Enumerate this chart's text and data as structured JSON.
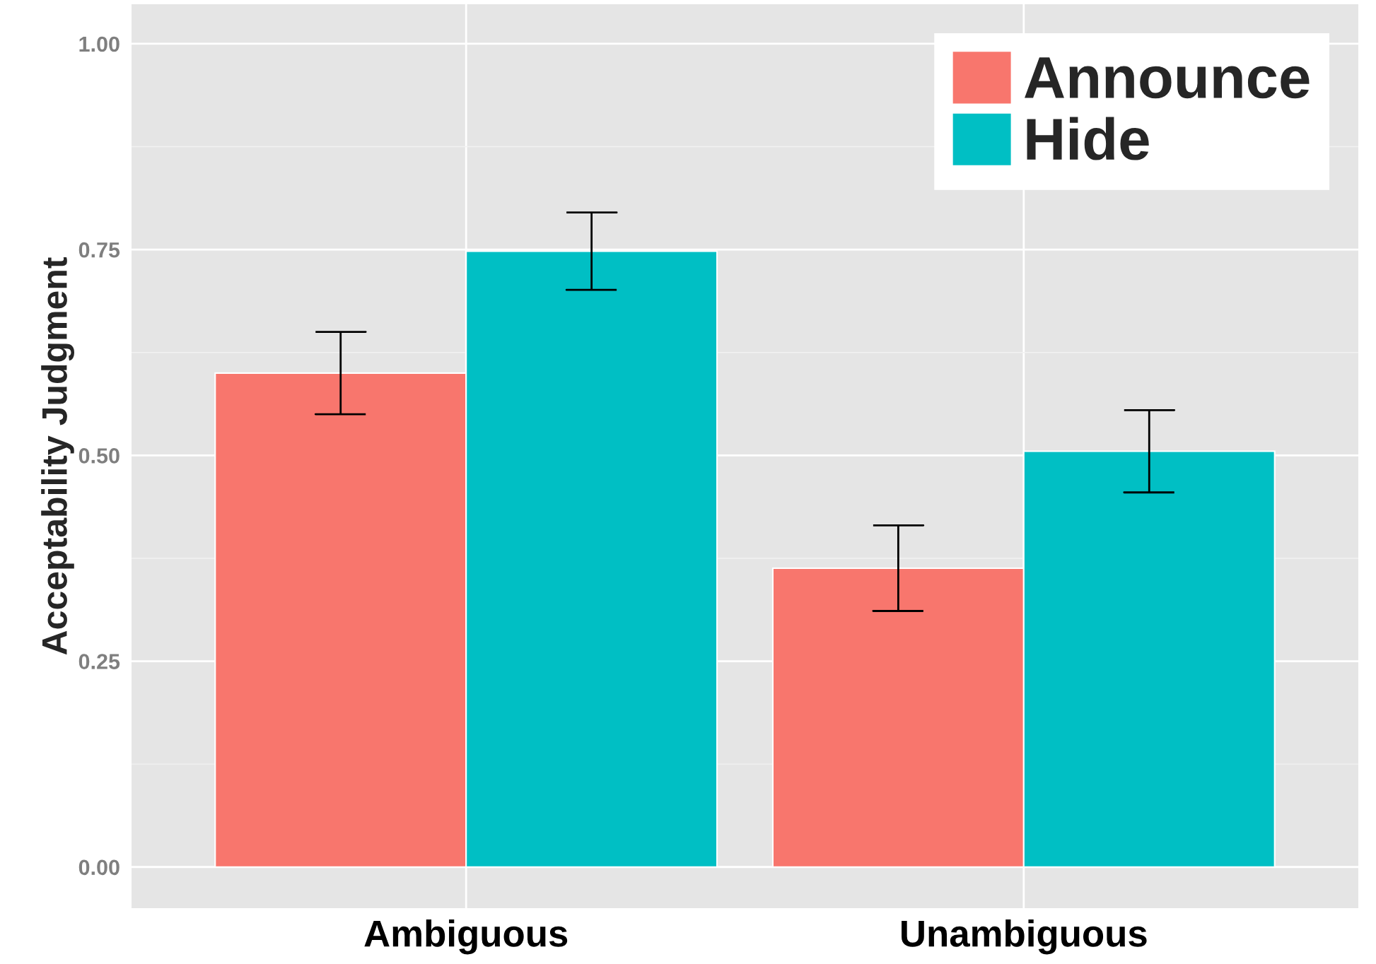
{
  "chart_data": {
    "type": "bar",
    "ylabel": "Acceptability Judgment",
    "categories": [
      "Ambiguous",
      "Unambiguous"
    ],
    "series": [
      {
        "name": "Announce",
        "color": "#f8766d",
        "values": [
          0.6,
          0.363
        ],
        "errors": [
          0.05,
          0.052
        ]
      },
      {
        "name": "Hide",
        "color": "#00bfc4",
        "values": [
          0.748,
          0.505
        ],
        "errors": [
          0.047,
          0.05
        ]
      }
    ],
    "ylim": [
      -0.05,
      1.048
    ],
    "yticks": [
      {
        "value": 0,
        "label": "0.00"
      },
      {
        "value": 0.25,
        "label": "0.25"
      },
      {
        "value": 0.5,
        "label": "0.50"
      },
      {
        "value": 0.75,
        "label": "0.75"
      },
      {
        "value": 1,
        "label": "1.00"
      }
    ],
    "grid": true,
    "legend": "top right"
  }
}
